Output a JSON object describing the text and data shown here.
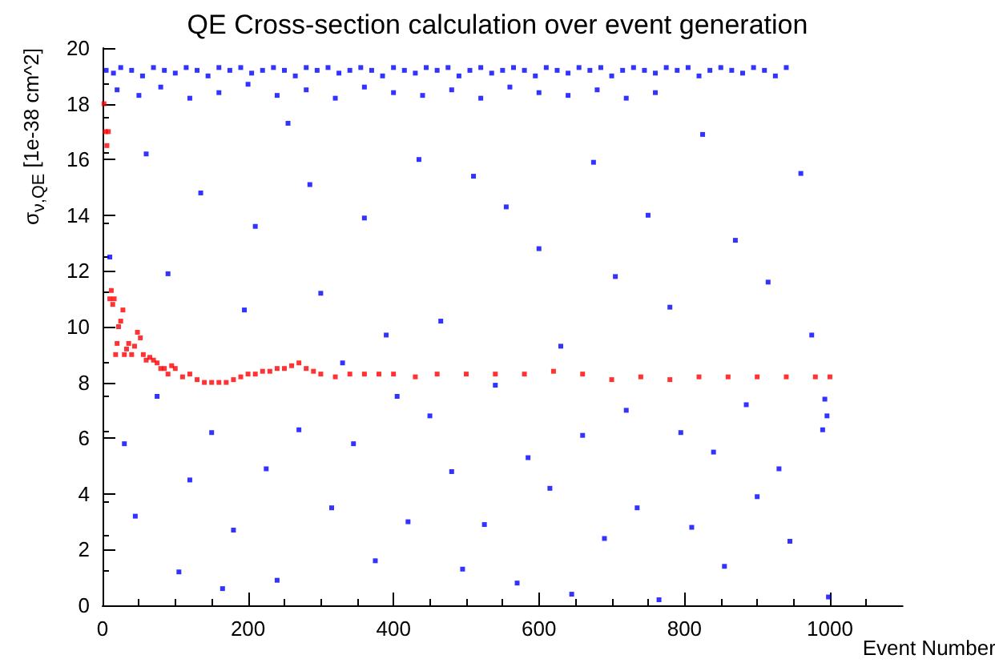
{
  "chart_data": {
    "type": "scatter",
    "title": "QE Cross-section calculation over event generation",
    "xlabel": "Event Number",
    "ylabel": "σ$_{ν,QE}$ [1e-38 cm^2]",
    "xlim": [
      0,
      1100
    ],
    "xticks": [
      0,
      200,
      400,
      600,
      800,
      {
        "value": 1000,
        "label": "1000"
      }
    ],
    "ylim": [
      0,
      20
    ],
    "yticks": [
      0,
      2,
      4,
      6,
      8,
      10,
      12,
      14,
      16,
      18,
      20
    ],
    "grid": false,
    "legend": false,
    "marker": "square",
    "series": [
      {
        "color": "#ff0000",
        "x": [
          2,
          4,
          6,
          8,
          10,
          12,
          14,
          16,
          18,
          20,
          22,
          25,
          28,
          30,
          33,
          36,
          40,
          44,
          48,
          52,
          56,
          60,
          65,
          70,
          75,
          80,
          85,
          90,
          95,
          100,
          110,
          120,
          130,
          140,
          150,
          160,
          170,
          180,
          190,
          200,
          210,
          220,
          230,
          240,
          250,
          260,
          270,
          280,
          290,
          300,
          320,
          340,
          360,
          380,
          400,
          430,
          460,
          500,
          540,
          580,
          620,
          660,
          700,
          740,
          780,
          820,
          860,
          900,
          940,
          980,
          1000
        ],
        "values": [
          18.0,
          17.0,
          16.5,
          17.0,
          11.0,
          11.3,
          10.8,
          11.0,
          9.0,
          9.4,
          10.0,
          10.2,
          10.6,
          9.0,
          9.2,
          9.4,
          9.0,
          9.3,
          9.8,
          9.6,
          9.0,
          8.8,
          8.9,
          8.8,
          8.7,
          8.5,
          8.5,
          8.3,
          8.6,
          8.5,
          8.2,
          8.3,
          8.1,
          8.0,
          8.0,
          8.0,
          8.0,
          8.1,
          8.2,
          8.3,
          8.3,
          8.4,
          8.4,
          8.5,
          8.5,
          8.6,
          8.7,
          8.5,
          8.4,
          8.3,
          8.2,
          8.3,
          8.3,
          8.3,
          8.3,
          8.2,
          8.3,
          8.3,
          8.3,
          8.3,
          8.4,
          8.3,
          8.1,
          8.2,
          8.1,
          8.2,
          8.2,
          8.2,
          8.2,
          8.2,
          8.2
        ]
      },
      {
        "color": "#0000ff",
        "x": [
          5,
          15,
          25,
          40,
          55,
          70,
          85,
          100,
          115,
          130,
          145,
          160,
          175,
          190,
          205,
          220,
          235,
          250,
          265,
          280,
          295,
          310,
          325,
          340,
          355,
          370,
          385,
          400,
          415,
          430,
          445,
          460,
          475,
          490,
          505,
          520,
          535,
          550,
          565,
          580,
          595,
          610,
          625,
          640,
          655,
          670,
          685,
          700,
          715,
          730,
          745,
          760,
          775,
          790,
          805,
          820,
          835,
          850,
          865,
          880,
          895,
          910,
          925,
          940,
          20,
          50,
          80,
          120,
          160,
          200,
          240,
          280,
          320,
          360,
          400,
          440,
          480,
          520,
          560,
          600,
          640,
          680,
          720,
          760,
          10,
          30,
          45,
          60,
          75,
          90,
          105,
          120,
          135,
          150,
          165,
          180,
          195,
          210,
          225,
          240,
          255,
          270,
          285,
          300,
          315,
          330,
          345,
          360,
          375,
          390,
          405,
          420,
          435,
          450,
          465,
          480,
          495,
          510,
          525,
          540,
          555,
          570,
          585,
          600,
          615,
          630,
          645,
          660,
          675,
          690,
          705,
          720,
          735,
          750,
          765,
          780,
          795,
          810,
          825,
          840,
          855,
          870,
          885,
          900,
          915,
          930,
          945,
          960,
          975,
          990,
          998,
          993,
          996
        ],
        "values": [
          19.2,
          19.1,
          19.3,
          19.2,
          19.0,
          19.3,
          19.2,
          19.1,
          19.3,
          19.2,
          19.0,
          19.3,
          19.2,
          19.3,
          19.1,
          19.2,
          19.3,
          19.2,
          19.0,
          19.3,
          19.2,
          19.3,
          19.1,
          19.2,
          19.3,
          19.2,
          19.0,
          19.3,
          19.2,
          19.1,
          19.3,
          19.2,
          19.3,
          19.0,
          19.2,
          19.3,
          19.1,
          19.2,
          19.3,
          19.2,
          19.0,
          19.3,
          19.2,
          19.1,
          19.3,
          19.2,
          19.3,
          19.0,
          19.2,
          19.3,
          19.2,
          19.1,
          19.3,
          19.2,
          19.3,
          19.0,
          19.2,
          19.3,
          19.2,
          19.1,
          19.3,
          19.2,
          19.0,
          19.3,
          18.5,
          18.3,
          18.6,
          18.2,
          18.4,
          18.7,
          18.3,
          18.5,
          18.2,
          18.6,
          18.4,
          18.3,
          18.5,
          18.2,
          18.6,
          18.4,
          18.3,
          18.5,
          18.2,
          18.4,
          12.5,
          5.8,
          3.2,
          16.2,
          7.5,
          11.9,
          1.2,
          4.5,
          14.8,
          6.2,
          0.6,
          2.7,
          10.6,
          13.6,
          4.9,
          0.9,
          17.3,
          6.3,
          15.1,
          11.2,
          3.5,
          8.7,
          5.8,
          13.9,
          1.6,
          9.7,
          7.5,
          3.0,
          16.0,
          6.8,
          10.2,
          4.8,
          1.3,
          15.4,
          2.9,
          7.9,
          14.3,
          0.8,
          5.3,
          12.8,
          4.2,
          9.3,
          0.4,
          6.1,
          15.9,
          2.4,
          11.8,
          7.0,
          3.5,
          14.0,
          0.2,
          10.7,
          6.2,
          2.8,
          16.9,
          5.5,
          1.4,
          13.1,
          7.2,
          3.9,
          11.6,
          4.9,
          2.3,
          15.5,
          9.7,
          6.3,
          0.3,
          7.4,
          6.8
        ]
      }
    ]
  }
}
